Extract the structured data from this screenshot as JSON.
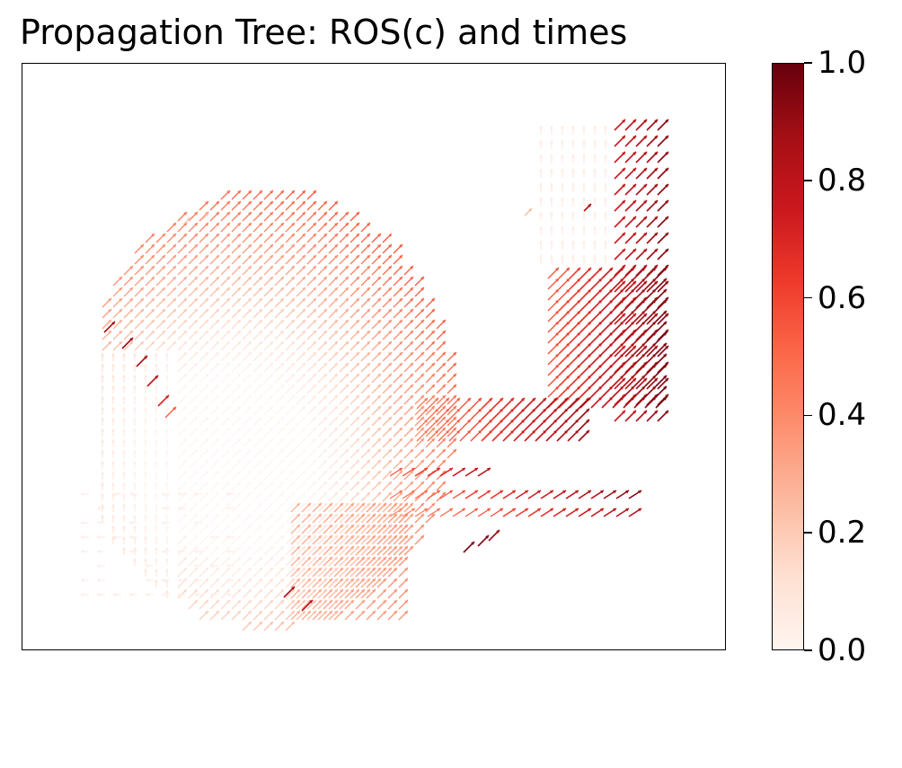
{
  "title": "Propagation Tree: ROS(c) and times",
  "chart_data": {
    "type": "quiver",
    "title": "Propagation Tree: ROS(c) and times",
    "xlabel": "",
    "ylabel": "",
    "axes_ticks": "none",
    "colormap": "Reds",
    "colorbar": {
      "range": [
        0.0,
        1.0
      ],
      "ticks": [
        0.0,
        0.2,
        0.4,
        0.6,
        0.8,
        1.0
      ],
      "tick_labels": [
        "0.0",
        "0.2",
        "0.4",
        "0.6",
        "0.8",
        "1.0"
      ],
      "placement": "right"
    },
    "grid": false,
    "legend": "none"
  }
}
